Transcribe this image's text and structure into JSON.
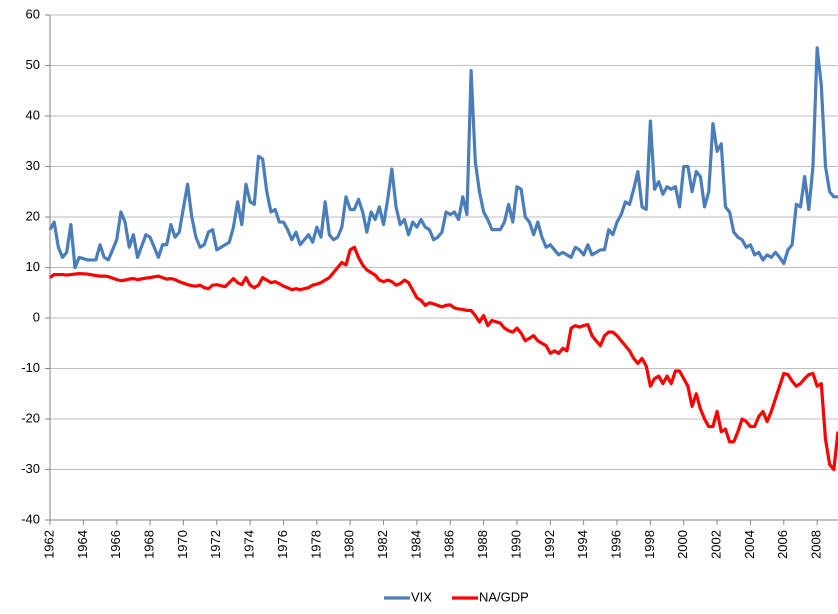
{
  "chart_data": {
    "type": "line",
    "x": [
      1962.0,
      1962.25,
      1962.5,
      1962.75,
      1963.0,
      1963.25,
      1963.5,
      1963.75,
      1964.25,
      1964.75,
      1965.0,
      1965.25,
      1965.5,
      1966.0,
      1966.25,
      1966.5,
      1966.75,
      1967.0,
      1967.25,
      1967.75,
      1968.0,
      1968.5,
      1968.75,
      1969.0,
      1969.25,
      1969.5,
      1969.75,
      1970.25,
      1970.5,
      1970.75,
      1971.0,
      1971.25,
      1971.5,
      1971.75,
      1972.0,
      1972.5,
      1972.75,
      1973.0,
      1973.25,
      1973.5,
      1973.75,
      1974.0,
      1974.25,
      1974.5,
      1974.75,
      1975.0,
      1975.25,
      1975.5,
      1975.75,
      1976.0,
      1976.25,
      1976.5,
      1976.75,
      1977.0,
      1977.25,
      1977.5,
      1977.75,
      1978.0,
      1978.25,
      1978.5,
      1978.75,
      1979.0,
      1979.25,
      1979.5,
      1979.75,
      1980.0,
      1980.25,
      1980.5,
      1980.75,
      1981.0,
      1981.25,
      1981.5,
      1981.75,
      1982.0,
      1982.25,
      1982.5,
      1982.75,
      1983.0,
      1983.25,
      1983.5,
      1983.75,
      1984.0,
      1984.25,
      1984.5,
      1984.75,
      1985.0,
      1985.25,
      1985.5,
      1985.75,
      1986.0,
      1986.25,
      1986.5,
      1986.75,
      1987.0,
      1987.25,
      1987.5,
      1987.75,
      1988.0,
      1988.25,
      1988.5,
      1989.0,
      1989.25,
      1989.5,
      1989.75,
      1990.0,
      1990.25,
      1990.5,
      1990.75,
      1991.0,
      1991.25,
      1991.5,
      1991.75,
      1992.0,
      1992.25,
      1992.5,
      1992.75,
      1993.0,
      1993.25,
      1993.5,
      1993.75,
      1994.0,
      1994.25,
      1994.5,
      1994.75,
      1995.0,
      1995.25,
      1995.5,
      1995.75,
      1996.0,
      1996.25,
      1996.5,
      1996.75,
      1997.0,
      1997.25,
      1997.5,
      1997.75,
      1998.0,
      1998.25,
      1998.5,
      1998.75,
      1999.0,
      1999.25,
      1999.5,
      1999.75,
      2000.0,
      2000.25,
      2000.5,
      2000.75,
      2001.0,
      2001.25,
      2001.5,
      2001.75,
      2002.0,
      2002.25,
      2002.5,
      2002.75,
      2003.0,
      2003.25,
      2003.5,
      2003.75,
      2004.0,
      2004.25,
      2004.5,
      2004.75,
      2005.0,
      2005.25,
      2005.5,
      2005.75,
      2006.0,
      2006.25,
      2006.5,
      2006.75,
      2007.0,
      2007.25,
      2007.5,
      2007.75,
      2008.0,
      2008.25,
      2008.5,
      2008.75,
      2009.0,
      2009.25
    ],
    "series": [
      {
        "name": "VIX",
        "color": "#4a7ebb",
        "values": [
          17.5,
          19,
          14,
          12,
          13,
          18.5,
          10,
          12,
          11.5,
          11.5,
          14.5,
          12,
          11.5,
          15.5,
          21,
          19,
          14,
          16.5,
          12,
          16.5,
          16,
          12,
          14.5,
          14.5,
          18.5,
          16,
          17,
          26.5,
          20,
          16,
          14,
          14.5,
          17,
          17.5,
          13.5,
          14.5,
          15,
          18,
          23,
          18.5,
          26.5,
          23,
          22.5,
          32,
          31.5,
          25,
          21,
          21.5,
          19,
          19,
          17.5,
          15.5,
          17,
          14.5,
          15.5,
          16.5,
          15,
          18,
          16,
          23,
          16.5,
          15.5,
          16,
          18,
          24,
          21.5,
          21.5,
          23.5,
          21,
          17,
          21,
          19.5,
          22,
          18.5,
          23.5,
          29.5,
          22,
          18.5,
          19.5,
          16.5,
          19,
          18,
          19.5,
          18,
          17.5,
          15.5,
          16,
          17,
          21,
          20.5,
          21,
          19.5,
          24,
          20.5,
          49,
          31,
          25,
          21,
          19.5,
          17.5,
          17.5,
          19,
          22.5,
          19,
          26,
          25.5,
          20,
          19,
          16.5,
          19,
          16,
          14,
          14.5,
          13.5,
          12.5,
          13,
          12.5,
          12,
          14,
          13.5,
          12.5,
          14.5,
          12.5,
          13,
          13.5,
          13.5,
          17.5,
          16.5,
          19,
          20.5,
          23,
          22.5,
          25.5,
          29,
          22,
          21.5,
          39,
          25.5,
          27,
          24.5,
          26,
          25.5,
          26,
          22,
          30,
          30,
          25,
          29,
          28,
          22,
          25,
          38.5,
          33,
          34.5,
          22,
          21,
          17,
          16,
          15.5,
          14,
          14.5,
          12.5,
          13,
          11.5,
          12.5,
          12,
          13,
          12,
          10.8,
          13.5,
          14.5,
          22.5,
          22,
          28,
          21.5,
          30,
          53.5,
          46,
          30,
          25,
          24,
          24
        ]
      },
      {
        "name": "NA/GDP",
        "color": "#ff0000",
        "values": [
          8.0,
          8.6,
          8.6,
          8.6,
          8.5,
          8.6,
          8.7,
          8.8,
          8.7,
          8.4,
          8.3,
          8.3,
          8.2,
          7.6,
          7.4,
          7.5,
          7.7,
          7.8,
          7.6,
          7.9,
          8.0,
          8.3,
          8.0,
          7.7,
          7.8,
          7.6,
          7.2,
          6.6,
          6.4,
          6.3,
          6.5,
          6.0,
          5.8,
          6.5,
          6.6,
          6.2,
          7.0,
          7.8,
          7.0,
          6.6,
          8.0,
          6.5,
          6.0,
          6.5,
          8.0,
          7.5,
          7.0,
          7.2,
          6.8,
          6.3,
          6.0,
          5.6,
          5.8,
          5.6,
          5.8,
          6.0,
          6.5,
          6.7,
          7.0,
          7.5,
          8.0,
          9.0,
          10.0,
          11,
          10.5,
          13.5,
          14,
          12,
          10.5,
          9.5,
          9,
          8.5,
          7.5,
          7.2,
          7.5,
          7.2,
          6.5,
          6.8,
          7.5,
          7.0,
          5.5,
          4.0,
          3.5,
          2.5,
          3.0,
          2.8,
          2.5,
          2.2,
          2.5,
          2.6,
          2.0,
          1.8,
          1.7,
          1.5,
          1.5,
          0.5,
          -0.8,
          0.5,
          -1.5,
          -0.5,
          -1.0,
          -2.0,
          -2.5,
          -2.8,
          -2.0,
          -3.0,
          -4.5,
          -4.0,
          -3.5,
          -4.5,
          -5.0,
          -5.5,
          -7,
          -6.5,
          -7,
          -6,
          -6.5,
          -2,
          -1.5,
          -1.8,
          -1.5,
          -1.3,
          -3.5,
          -4.5,
          -5.5,
          -3.5,
          -2.8,
          -2.8,
          -3.5,
          -4.5,
          -5.5,
          -6.5,
          -8,
          -9,
          -8,
          -9.5,
          -13.5,
          -12,
          -11.5,
          -13,
          -11.5,
          -13,
          -10.5,
          -10.5,
          -12,
          -13.5,
          -17.5,
          -15,
          -18,
          -20,
          -21.5,
          -21.5,
          -18.5,
          -22.5,
          -22,
          -24.5,
          -24.5,
          -22.5,
          -20,
          -20.5,
          -21.5,
          -21.5,
          -19.5,
          -18.5,
          -20.5,
          -18.5,
          -16,
          -13.5,
          -11,
          -11.2,
          -12.5,
          -13.5,
          -13,
          -12,
          -11.2,
          -11,
          -13.5,
          -13,
          -24,
          -29,
          -30,
          -22.5
        ]
      }
    ],
    "xlim": [
      1962,
      2009.25
    ],
    "xticks": [
      1962,
      1964,
      1966,
      1968,
      1970,
      1972,
      1974,
      1976,
      1978,
      1980,
      1982,
      1984,
      1986,
      1988,
      1990,
      1992,
      1994,
      1996,
      1998,
      2000,
      2002,
      2004,
      2006,
      2008
    ],
    "ylim": [
      -40,
      60
    ],
    "yticks": [
      -40,
      -30,
      -20,
      -10,
      0,
      10,
      20,
      30,
      40,
      50,
      60
    ],
    "grid": true,
    "legend": "bottom"
  }
}
